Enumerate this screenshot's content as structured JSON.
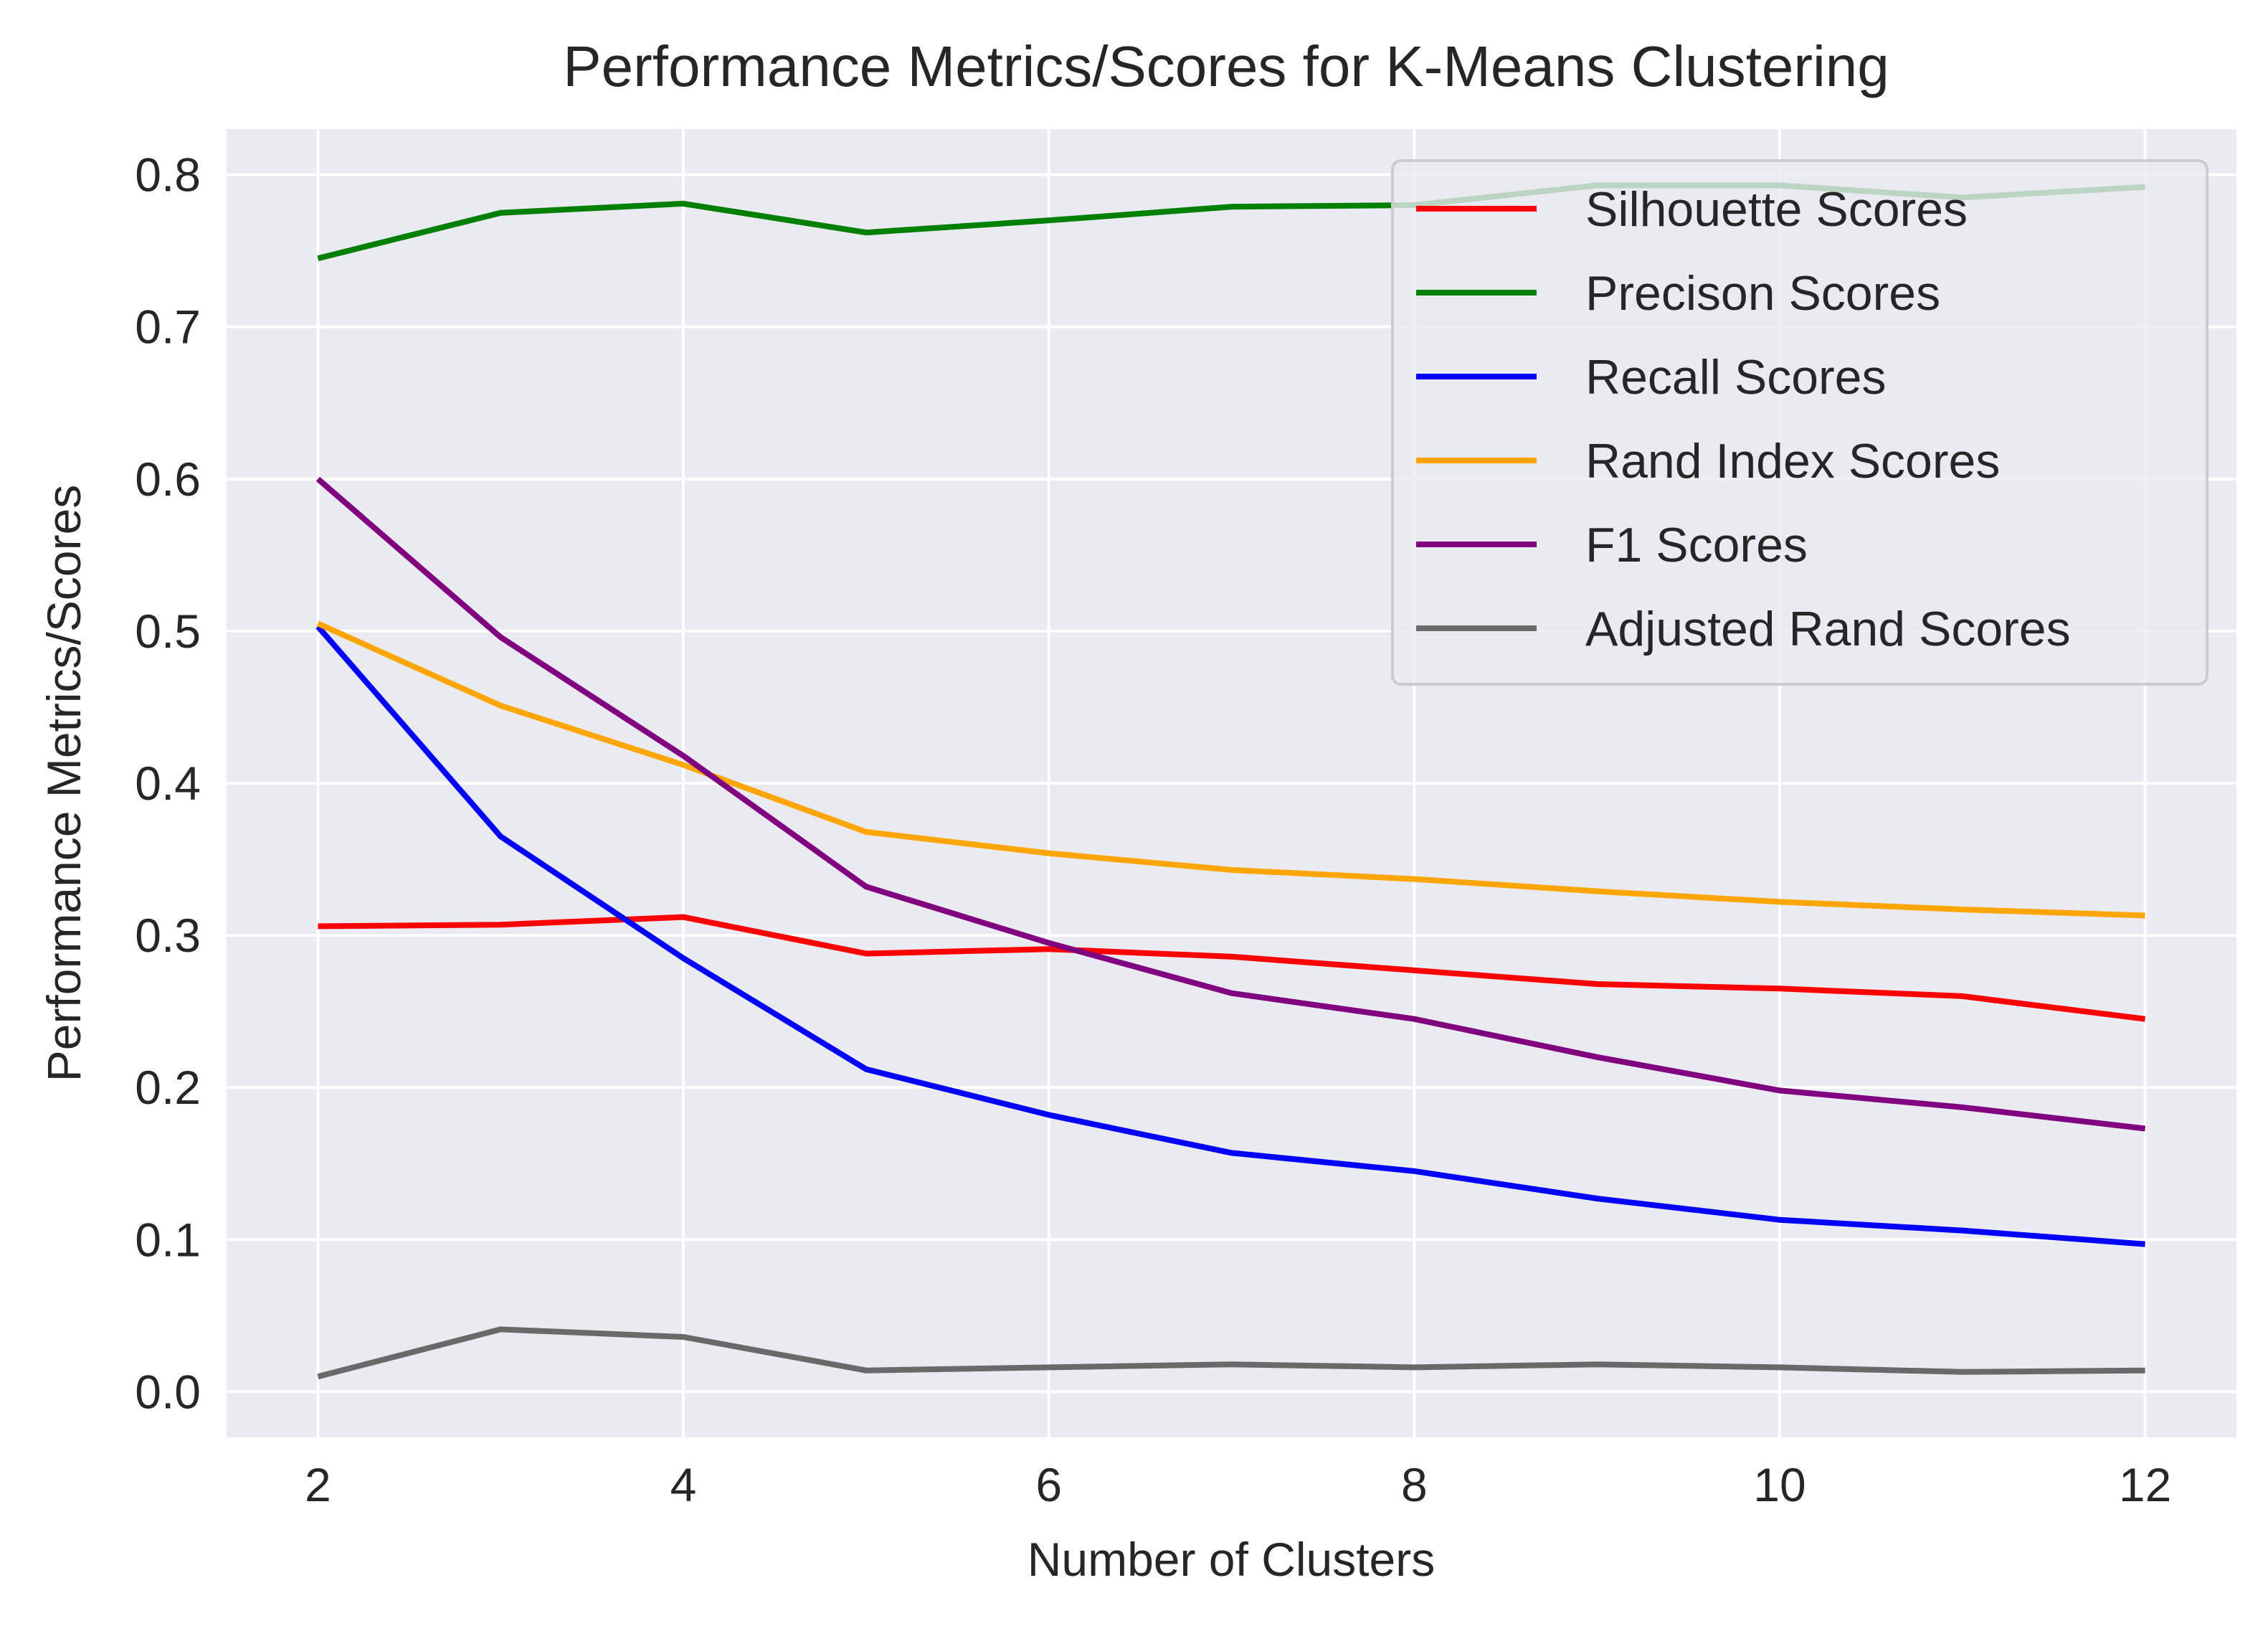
{
  "chart_data": {
    "type": "line",
    "title": "Performance Metrics/Scores for K-Means Clustering",
    "xlabel": "Number of Clusters",
    "ylabel": "Performance Metrics/Scores",
    "x": [
      2,
      3,
      4,
      5,
      6,
      7,
      8,
      9,
      10,
      11,
      12
    ],
    "xlim": [
      1.5,
      12.5
    ],
    "ylim": [
      -0.03,
      0.83
    ],
    "xticks": [
      "2",
      "4",
      "6",
      "8",
      "10",
      "12"
    ],
    "yticks": [
      "0.0",
      "0.1",
      "0.2",
      "0.3",
      "0.4",
      "0.5",
      "0.6",
      "0.7",
      "0.8"
    ],
    "grid": true,
    "legend_position": "top-right",
    "background_color": "#eaeaf2",
    "series": [
      {
        "name": "Silhouette Scores",
        "color": "#ff0000",
        "values": [
          0.306,
          0.307,
          0.312,
          0.288,
          0.291,
          0.286,
          0.277,
          0.268,
          0.265,
          0.26,
          0.245
        ]
      },
      {
        "name": "Precison Scores",
        "color": "#008000",
        "values": [
          0.745,
          0.775,
          0.781,
          0.762,
          0.77,
          0.779,
          0.78,
          0.793,
          0.793,
          0.785,
          0.792
        ]
      },
      {
        "name": "Recall Scores",
        "color": "#0000ff",
        "values": [
          0.503,
          0.365,
          0.285,
          0.212,
          0.182,
          0.157,
          0.145,
          0.127,
          0.113,
          0.106,
          0.097
        ]
      },
      {
        "name": "Rand Index Scores",
        "color": "#ffa500",
        "values": [
          0.505,
          0.451,
          0.412,
          0.368,
          0.354,
          0.343,
          0.337,
          0.329,
          0.322,
          0.317,
          0.313
        ]
      },
      {
        "name": "F1 Scores",
        "color": "#800080",
        "values": [
          0.6,
          0.496,
          0.418,
          0.332,
          0.295,
          0.262,
          0.245,
          0.22,
          0.198,
          0.187,
          0.173
        ]
      },
      {
        "name": "Adjusted Rand Scores",
        "color": "#696969",
        "values": [
          0.01,
          0.041,
          0.036,
          0.014,
          0.016,
          0.018,
          0.016,
          0.018,
          0.016,
          0.013,
          0.014
        ]
      }
    ]
  }
}
